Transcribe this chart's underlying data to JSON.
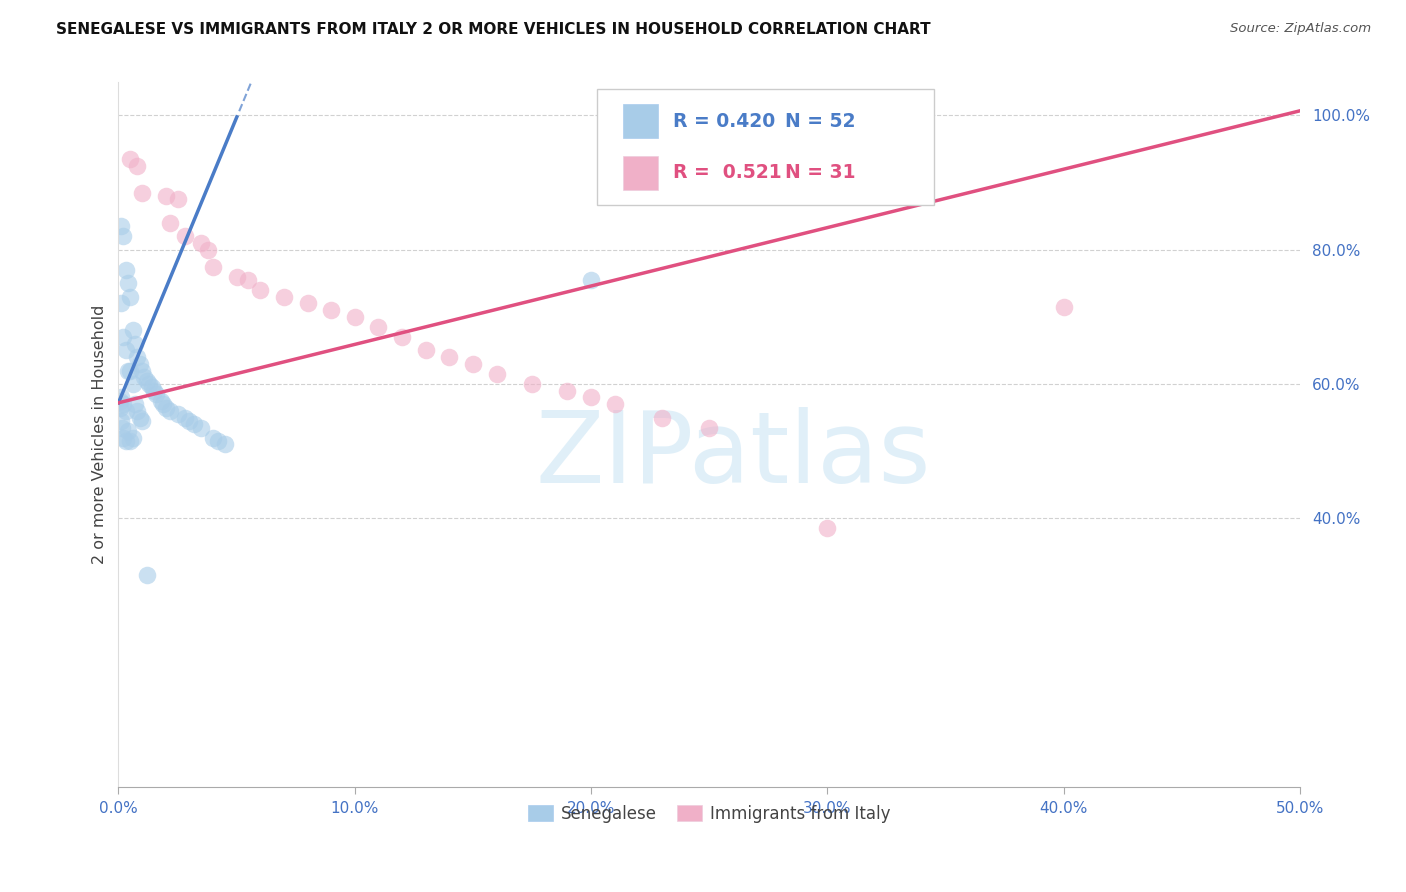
{
  "title": "SENEGALESE VS IMMIGRANTS FROM ITALY 2 OR MORE VEHICLES IN HOUSEHOLD CORRELATION CHART",
  "source": "Source: ZipAtlas.com",
  "ylabel": "2 or more Vehicles in Household",
  "xlim": [
    0.0,
    0.5
  ],
  "ylim": [
    0.0,
    1.05
  ],
  "xtick_vals": [
    0.0,
    0.1,
    0.2,
    0.3,
    0.4,
    0.5
  ],
  "xticklabels": [
    "0.0%",
    "10.0%",
    "20.0%",
    "30.0%",
    "40.0%",
    "50.0%"
  ],
  "ytick_vals": [
    0.0,
    0.2,
    0.4,
    0.6,
    0.8,
    1.0
  ],
  "yticklabels": [
    "",
    "",
    "40.0%",
    "60.0%",
    "80.0%",
    "100.0%"
  ],
  "r_blue": "0.420",
  "n_blue": "52",
  "r_pink": "0.521",
  "n_pink": "31",
  "blue_scatter_color": "#a8cce8",
  "pink_scatter_color": "#f0b0c8",
  "blue_line_color": "#4a7cc7",
  "pink_line_color": "#e05080",
  "grid_color": "#cccccc",
  "tick_color": "#4472c4",
  "title_color": "#111111",
  "watermark_text": "ZIPatlas",
  "senegalese_x": [
    0.0005,
    0.0008,
    0.001,
    0.001,
    0.001,
    0.0012,
    0.0015,
    0.002,
    0.002,
    0.002,
    0.002,
    0.003,
    0.003,
    0.003,
    0.003,
    0.004,
    0.004,
    0.004,
    0.005,
    0.005,
    0.005,
    0.006,
    0.006,
    0.006,
    0.007,
    0.007,
    0.008,
    0.008,
    0.009,
    0.009,
    0.01,
    0.01,
    0.011,
    0.012,
    0.013,
    0.014,
    0.015,
    0.016,
    0.018,
    0.019,
    0.02,
    0.022,
    0.025,
    0.028,
    0.03,
    0.032,
    0.035,
    0.04,
    0.042,
    0.045,
    0.2,
    0.012
  ],
  "senegalese_y": [
    0.575,
    0.565,
    0.835,
    0.72,
    0.58,
    0.545,
    0.535,
    0.82,
    0.67,
    0.57,
    0.52,
    0.77,
    0.65,
    0.56,
    0.515,
    0.75,
    0.62,
    0.53,
    0.73,
    0.62,
    0.515,
    0.68,
    0.6,
    0.52,
    0.66,
    0.57,
    0.64,
    0.56,
    0.63,
    0.55,
    0.62,
    0.545,
    0.61,
    0.605,
    0.6,
    0.595,
    0.59,
    0.585,
    0.575,
    0.57,
    0.565,
    0.56,
    0.555,
    0.55,
    0.545,
    0.54,
    0.535,
    0.52,
    0.515,
    0.51,
    0.755,
    0.315
  ],
  "italy_x": [
    0.005,
    0.008,
    0.01,
    0.02,
    0.022,
    0.025,
    0.028,
    0.035,
    0.038,
    0.04,
    0.05,
    0.055,
    0.06,
    0.07,
    0.08,
    0.09,
    0.1,
    0.11,
    0.12,
    0.13,
    0.14,
    0.15,
    0.16,
    0.175,
    0.19,
    0.2,
    0.21,
    0.23,
    0.25,
    0.3,
    0.4
  ],
  "italy_y": [
    0.935,
    0.925,
    0.885,
    0.88,
    0.84,
    0.875,
    0.82,
    0.81,
    0.8,
    0.775,
    0.76,
    0.755,
    0.74,
    0.73,
    0.72,
    0.71,
    0.7,
    0.685,
    0.67,
    0.65,
    0.64,
    0.63,
    0.615,
    0.6,
    0.59,
    0.58,
    0.57,
    0.55,
    0.535,
    0.385,
    0.715
  ],
  "blue_line_intercept": 0.572,
  "blue_line_slope": 8.5,
  "pink_line_intercept": 0.572,
  "pink_line_slope": 0.87
}
